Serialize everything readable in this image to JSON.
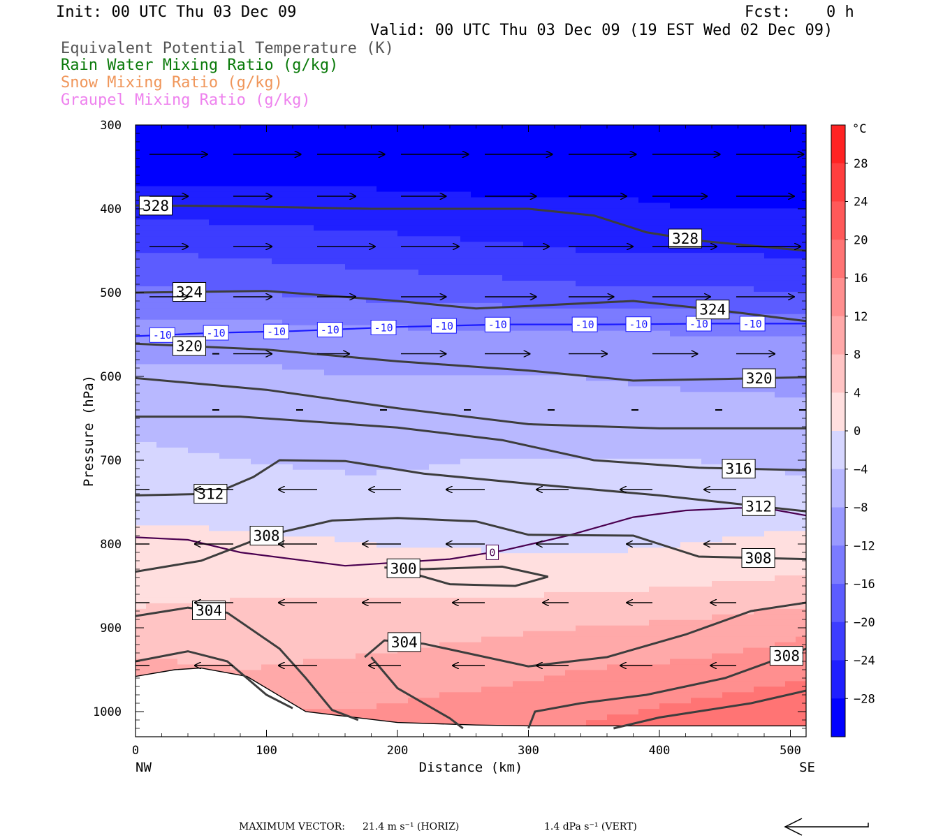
{
  "header": {
    "init": "Init: 00 UTC Thu 03 Dec 09",
    "fcst_label": "Fcst:",
    "fcst_value": "0 h",
    "valid": "Valid: 00 UTC Thu 03 Dec 09 (19 EST Wed 02 Dec 09)"
  },
  "fields": [
    {
      "label": "Equivalent Potential Temperature (K)",
      "color": "#555555"
    },
    {
      "label": "Rain Water Mixing Ratio (g/kg)",
      "color": "#0a7a0a"
    },
    {
      "label": "Snow Mixing Ratio (g/kg)",
      "color": "#f0965a"
    },
    {
      "label": "Graupel Mixing Ratio (g/kg)",
      "color": "#ee82ee"
    }
  ],
  "footer": {
    "max_vector_label": "MAXIMUM VECTOR:",
    "horiz": "21.4 m s⁻¹ (HORIZ)",
    "vert": "1.4 dPa s⁻¹ (VERT)"
  },
  "chart_data": {
    "type": "heatmap",
    "xlabel": "Distance (km)",
    "ylabel": "Pressure (hPa)",
    "x_ticks": [
      0,
      100,
      200,
      300,
      400,
      500
    ],
    "x_end_labels": {
      "left": "NW",
      "right": "SE"
    },
    "xlim": [
      0,
      512
    ],
    "y_ticks": [
      300,
      400,
      500,
      600,
      700,
      800,
      900,
      1000
    ],
    "ylim": [
      300,
      1030
    ],
    "colorbar": {
      "unit": "°C",
      "tick_labels": [
        28,
        24,
        20,
        16,
        12,
        8,
        4,
        0,
        -4,
        -8,
        -12,
        -16,
        -20,
        -24,
        -28
      ],
      "range": [
        -32,
        32
      ],
      "step": 4
    },
    "temperature_shading": [
      {
        "p": 300,
        "t": [
          -32,
          -32,
          -32,
          -32,
          -32,
          -32,
          -32
        ]
      },
      {
        "p": 350,
        "t": [
          -30,
          -30,
          -30,
          -30,
          -30,
          -30,
          -30
        ]
      },
      {
        "p": 400,
        "t": [
          -25,
          -26,
          -26,
          -27,
          -27,
          -28,
          -28
        ]
      },
      {
        "p": 450,
        "t": [
          -20,
          -21,
          -22,
          -23,
          -24,
          -24,
          -25
        ]
      },
      {
        "p": 500,
        "t": [
          -15,
          -16,
          -17,
          -18,
          -19,
          -19,
          -20
        ]
      },
      {
        "p": 550,
        "t": [
          -10,
          -10,
          -11,
          -11,
          -11,
          -12,
          -12
        ]
      },
      {
        "p": 600,
        "t": [
          -7,
          -7,
          -8,
          -8,
          -8,
          -9,
          -9
        ]
      },
      {
        "p": 650,
        "t": [
          -5,
          -7,
          -6,
          -6,
          -6,
          -6,
          -7
        ]
      },
      {
        "p": 700,
        "t": [
          -3,
          -4,
          -5,
          -4,
          -4,
          -4,
          -5
        ]
      },
      {
        "p": 750,
        "t": [
          -1,
          -2,
          -2,
          -2,
          -2,
          -2,
          -2
        ]
      },
      {
        "p": 800,
        "t": [
          1,
          1,
          0,
          -0.5,
          -1,
          0,
          1
        ]
      },
      {
        "p": 850,
        "t": [
          3,
          3,
          3,
          3,
          3,
          4,
          5
        ]
      },
      {
        "p": 900,
        "t": [
          5,
          6,
          6,
          7,
          8,
          9,
          11
        ]
      },
      {
        "p": 950,
        "t": [
          9,
          8,
          9,
          10,
          12,
          13,
          15
        ]
      },
      {
        "p": 1000,
        "t": [
          12,
          12,
          12,
          14,
          15,
          17,
          19
        ]
      },
      {
        "p": 1030,
        "t": [
          14,
          14,
          14,
          16,
          17,
          19,
          21
        ]
      }
    ],
    "shading_x": [
      0,
      85,
      170,
      255,
      340,
      425,
      512
    ],
    "theta_e_contours": [
      {
        "label": "328",
        "points": [
          [
            0,
            396
          ],
          [
            80,
            397
          ],
          [
            180,
            400
          ],
          [
            300,
            400
          ],
          [
            350,
            408
          ],
          [
            390,
            428
          ],
          [
            430,
            438
          ],
          [
            512,
            450
          ]
        ]
      },
      {
        "label": "324",
        "points": [
          [
            0,
            500
          ],
          [
            100,
            498
          ],
          [
            200,
            510
          ],
          [
            260,
            519
          ],
          [
            300,
            516
          ],
          [
            380,
            510
          ],
          [
            440,
            520
          ],
          [
            512,
            534
          ]
        ]
      },
      {
        "label": "320",
        "points": [
          [
            0,
            561
          ],
          [
            100,
            568
          ],
          [
            200,
            582
          ],
          [
            300,
            593
          ],
          [
            380,
            605
          ],
          [
            450,
            603
          ],
          [
            512,
            601
          ]
        ]
      },
      {
        "label": "",
        "points": [
          [
            0,
            602
          ],
          [
            100,
            616
          ],
          [
            200,
            638
          ],
          [
            300,
            657
          ],
          [
            400,
            662
          ],
          [
            512,
            662
          ]
        ]
      },
      {
        "label": "316",
        "points": [
          [
            0,
            648
          ],
          [
            80,
            648
          ],
          [
            200,
            661
          ],
          [
            280,
            676
          ],
          [
            350,
            700
          ],
          [
            430,
            709
          ],
          [
            512,
            712
          ]
        ]
      },
      {
        "label": "312",
        "points": [
          [
            0,
            742
          ],
          [
            60,
            740
          ],
          [
            90,
            720
          ],
          [
            110,
            700
          ],
          [
            160,
            701
          ],
          [
            220,
            716
          ],
          [
            300,
            728
          ],
          [
            400,
            742
          ],
          [
            512,
            761
          ]
        ]
      },
      {
        "label": "308",
        "points": [
          [
            0,
            833
          ],
          [
            50,
            820
          ],
          [
            100,
            790
          ],
          [
            150,
            772
          ],
          [
            200,
            769
          ],
          [
            260,
            773
          ],
          [
            300,
            789
          ],
          [
            380,
            790
          ],
          [
            430,
            815
          ],
          [
            512,
            818
          ]
        ]
      },
      {
        "label": "304",
        "points": [
          [
            0,
            886
          ],
          [
            40,
            876
          ],
          [
            70,
            882
          ],
          [
            110,
            925
          ],
          [
            130,
            960
          ],
          [
            150,
            998
          ],
          [
            170,
            1010
          ]
        ]
      },
      {
        "label": "300",
        "points": [
          [
            190,
            828
          ],
          [
            220,
            830
          ],
          [
            280,
            827
          ],
          [
            315,
            839
          ],
          [
            290,
            850
          ],
          [
            240,
            848
          ],
          [
            200,
            830
          ]
        ]
      },
      {
        "label": "",
        "points": [
          [
            0,
            940
          ],
          [
            40,
            928
          ],
          [
            70,
            940
          ],
          [
            100,
            980
          ],
          [
            120,
            996
          ]
        ]
      },
      {
        "label": "304",
        "points": [
          [
            175,
            935
          ],
          [
            190,
            915
          ],
          [
            220,
            919
          ],
          [
            300,
            946
          ],
          [
            360,
            935
          ],
          [
            420,
            908
          ],
          [
            470,
            880
          ],
          [
            512,
            870
          ]
        ]
      },
      {
        "label": "",
        "points": [
          [
            180,
            935
          ],
          [
            200,
            972
          ],
          [
            240,
            1008
          ],
          [
            250,
            1020
          ]
        ]
      },
      {
        "label": "308",
        "points": [
          [
            300,
            1020
          ],
          [
            305,
            1000
          ],
          [
            340,
            990
          ],
          [
            390,
            980
          ],
          [
            450,
            960
          ],
          [
            512,
            925
          ]
        ]
      },
      {
        "label": "",
        "points": [
          [
            365,
            1020
          ],
          [
            400,
            1007
          ],
          [
            470,
            990
          ],
          [
            512,
            975
          ]
        ]
      }
    ],
    "isotherms": [
      {
        "label": "-10",
        "color": "#1a1aff",
        "points": [
          [
            0,
            552
          ],
          [
            60,
            548
          ],
          [
            120,
            546
          ],
          [
            200,
            541
          ],
          [
            280,
            538
          ],
          [
            360,
            538
          ],
          [
            440,
            537
          ],
          [
            512,
            537
          ]
        ]
      },
      {
        "label": "0",
        "color": "#4a0050",
        "points": [
          [
            0,
            792
          ],
          [
            40,
            795
          ],
          [
            80,
            810
          ],
          [
            160,
            826
          ],
          [
            240,
            818
          ],
          [
            280,
            808
          ],
          [
            330,
            790
          ],
          [
            380,
            768
          ],
          [
            420,
            760
          ],
          [
            460,
            757
          ],
          [
            480,
            757
          ],
          [
            512,
            766
          ]
        ]
      }
    ],
    "terrain": [
      [
        0,
        958
      ],
      [
        30,
        950
      ],
      [
        50,
        948
      ],
      [
        85,
        958
      ],
      [
        130,
        1000
      ],
      [
        200,
        1013
      ],
      [
        260,
        1016
      ],
      [
        300,
        1017
      ],
      [
        400,
        1017
      ],
      [
        512,
        1017
      ]
    ],
    "wind_rows": [
      {
        "p": 335,
        "u": [
          18,
          21,
          21,
          21,
          21,
          21,
          21,
          21
        ]
      },
      {
        "p": 385,
        "u": [
          12,
          12,
          12,
          14,
          16,
          18,
          17,
          18
        ]
      },
      {
        "p": 445,
        "u": [
          12,
          12,
          18,
          18,
          20,
          20,
          20,
          20
        ]
      },
      {
        "p": 505,
        "u": [
          12,
          12,
          12,
          14,
          16,
          14,
          18,
          18
        ]
      },
      {
        "p": 573,
        "u": [
          0,
          12,
          10,
          14,
          14,
          12,
          14,
          12
        ]
      },
      {
        "p": 640,
        "u": [
          0,
          0,
          0,
          0,
          0,
          0,
          0,
          0
        ]
      },
      {
        "p": 735,
        "u": [
          -12,
          -12,
          -12,
          -10,
          -12,
          -10,
          -10,
          -10
        ]
      },
      {
        "p": 800,
        "u": [
          -12,
          -12,
          -12,
          -12,
          -12,
          -10,
          -8,
          -10
        ]
      },
      {
        "p": 870,
        "u": [
          -12,
          -12,
          -12,
          -12,
          -10,
          -8,
          -8,
          -8
        ]
      },
      {
        "p": 945,
        "u": [
          -10,
          -12,
          -12,
          -10,
          -10,
          -10,
          -10,
          -8
        ]
      }
    ],
    "wind_x": [
      0,
      64,
      128,
      192,
      256,
      320,
      384,
      448
    ]
  }
}
